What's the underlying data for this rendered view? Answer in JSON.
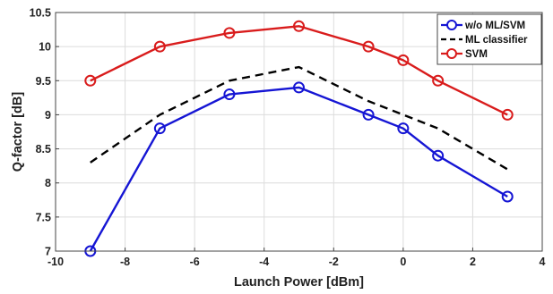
{
  "chart_data": {
    "type": "line",
    "xlabel": "Launch Power [dBm]",
    "ylabel": "Q-factor [dB]",
    "xlim": [
      -10,
      4
    ],
    "ylim": [
      7,
      10.5
    ],
    "xticks": [
      -10,
      -8,
      -6,
      -4,
      -2,
      0,
      2,
      4
    ],
    "yticks": [
      7,
      7.5,
      8,
      8.5,
      9,
      9.5,
      10,
      10.5
    ],
    "grid": true,
    "legend_position": "top-right",
    "series": [
      {
        "name": "w/o ML/SVM",
        "color": "#1515d4",
        "line_style": "solid",
        "marker": "circle",
        "x": [
          -9,
          -7,
          -5,
          -3,
          -1,
          0,
          1,
          3
        ],
        "y": [
          7.0,
          8.8,
          9.3,
          9.4,
          9.0,
          8.8,
          8.4,
          7.8
        ]
      },
      {
        "name": "ML classifier",
        "color": "#000000",
        "line_style": "dashed",
        "marker": "none",
        "x": [
          -9,
          -7,
          -5,
          -3,
          -1,
          0,
          1,
          3
        ],
        "y": [
          8.3,
          9.0,
          9.5,
          9.7,
          9.2,
          9.0,
          8.8,
          8.2
        ]
      },
      {
        "name": "SVM",
        "color": "#d91c1c",
        "line_style": "solid",
        "marker": "circle",
        "x": [
          -9,
          -7,
          -5,
          -3,
          -1,
          0,
          1,
          3
        ],
        "y": [
          9.5,
          10.0,
          10.2,
          10.3,
          10.0,
          9.8,
          9.5,
          9.0
        ]
      }
    ]
  }
}
